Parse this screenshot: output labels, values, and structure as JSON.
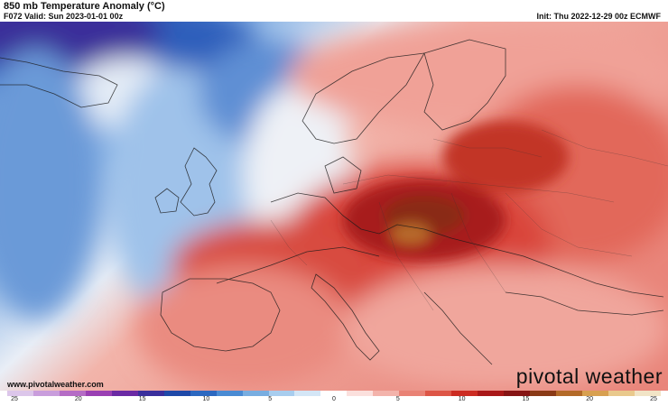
{
  "header": {
    "title": "850 mb Temperature Anomaly (°C)",
    "valid": "F072 Valid: Sun 2023-01-01 00z",
    "init": "Init: Thu 2022-12-29 00z ECMWF"
  },
  "footer": {
    "website": "www.pivotalweather.com",
    "brand": "pivotal weather"
  },
  "colorbar": {
    "ticks": [
      "25",
      "20",
      "15",
      "10",
      "5",
      "0",
      "5",
      "10",
      "15",
      "20",
      "25"
    ],
    "colors": [
      "#dcc6ea",
      "#c99ddc",
      "#b56cc5",
      "#9a40b3",
      "#6b2aa4",
      "#3a2f9c",
      "#1f49a8",
      "#2c68c0",
      "#4a8bd3",
      "#78ade0",
      "#a8cdee",
      "#d4e6f6",
      "#ffffff",
      "#fbe0dd",
      "#f3b3ab",
      "#e98275",
      "#dd5546",
      "#cc2c22",
      "#a91818",
      "#861414",
      "#8a3a16",
      "#b36a28",
      "#d8a050",
      "#e9c98c",
      "#f1e4c6"
    ]
  }
}
